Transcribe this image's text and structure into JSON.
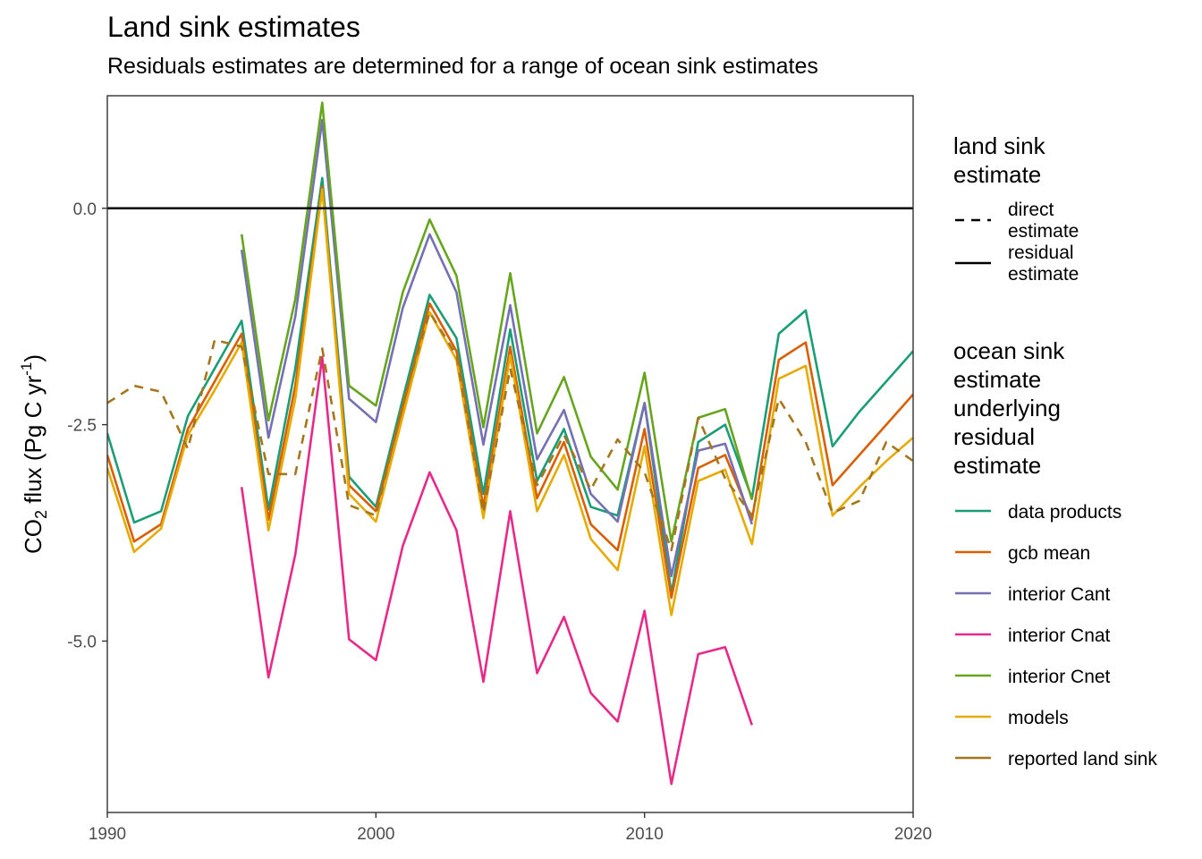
{
  "title": "Land sink estimates",
  "subtitle": "Residuals estimates are determined for a range of ocean sink estimates",
  "colors": {
    "data products": "#1b9e77",
    "gcb mean": "#d95f02",
    "interior Cant": "#7570b3",
    "interior Cnat": "#e7298a",
    "interior Cnet": "#66a61e",
    "models": "#e6ab02",
    "reported land sink": "#a6761d"
  },
  "chart_data": {
    "type": "line",
    "title": "Land sink estimates",
    "subtitle": "Residuals estimates are determined for a range of ocean sink estimates",
    "xlabel": "",
    "ylabel": "CO2 flux (Pg C yr-1)",
    "ylabel_parts": {
      "pre": "CO",
      "sub": "2",
      "mid": " flux (Pg C yr",
      "sup": "-1",
      "post": ")"
    },
    "xlim": [
      1990,
      2020
    ],
    "ylim": [
      -6.98,
      1.3
    ],
    "x_ticks": [
      1990,
      2000,
      2010,
      2020
    ],
    "x_tick_labels": [
      "1990",
      "2000",
      "2010",
      "2020"
    ],
    "y_ticks": [
      0,
      -2.5,
      -5
    ],
    "y_tick_labels": [
      "0.0",
      "-2.5",
      "-5.0"
    ],
    "reference_line_y": 0,
    "grid": false,
    "legend_position": "right",
    "linetype_legend": {
      "title_lines": [
        "land sink",
        "estimate"
      ],
      "entries": [
        {
          "label_lines": [
            "direct",
            "estimate"
          ],
          "dash": true
        },
        {
          "label_lines": [
            "residual",
            "estimate"
          ],
          "dash": false
        }
      ]
    },
    "color_legend": {
      "title_lines": [
        "ocean sink",
        "estimate",
        "underlying",
        "residual",
        "estimate"
      ],
      "entries": [
        "data products",
        "gcb mean",
        "interior Cant",
        "interior Cnat",
        "interior Cnet",
        "models",
        "reported land sink"
      ]
    },
    "series": [
      {
        "name": "data products",
        "linetype": "residual estimate",
        "x": [
          1990,
          1991,
          1992,
          1993,
          1994,
          1995,
          1996,
          1997,
          1998,
          1999,
          2000,
          2001,
          2002,
          2003,
          2004,
          2005,
          2006,
          2007,
          2008,
          2009,
          2010,
          2011,
          2012,
          2013,
          2014,
          2015,
          2016,
          2017,
          2018,
          2019,
          2020
        ],
        "y": [
          -2.6,
          -3.63,
          -3.5,
          -2.4,
          -1.85,
          -1.3,
          -3.48,
          -1.85,
          0.35,
          -3.1,
          -3.45,
          -2.2,
          -1.0,
          -1.5,
          -3.3,
          -1.4,
          -3.15,
          -2.55,
          -3.45,
          -3.55,
          -2.25,
          -4.45,
          -2.7,
          -2.5,
          -3.35,
          -1.45,
          -1.18,
          -2.75,
          -2.35,
          -2.0,
          -1.65
        ]
      },
      {
        "name": "gcb mean",
        "linetype": "residual estimate",
        "x": [
          1990,
          1991,
          1992,
          1993,
          1994,
          1995,
          1996,
          1997,
          1998,
          1999,
          2000,
          2001,
          2002,
          2003,
          2004,
          2005,
          2006,
          2007,
          2008,
          2009,
          2010,
          2011,
          2012,
          2013,
          2014,
          2015,
          2016,
          2017,
          2018,
          2019,
          2020
        ],
        "y": [
          -2.85,
          -3.85,
          -3.65,
          -2.55,
          -2.0,
          -1.45,
          -3.6,
          -2.05,
          0.25,
          -3.2,
          -3.5,
          -2.3,
          -1.1,
          -1.65,
          -3.45,
          -1.6,
          -3.35,
          -2.7,
          -3.65,
          -3.95,
          -2.55,
          -4.5,
          -3.0,
          -2.85,
          -3.6,
          -1.75,
          -1.55,
          -3.2,
          -2.85,
          -2.5,
          -2.15
        ]
      },
      {
        "name": "interior Cant",
        "linetype": "residual estimate",
        "x": [
          1995,
          1996,
          1997,
          1998,
          1999,
          2000,
          2001,
          2002,
          2003,
          2004,
          2005,
          2006,
          2007,
          2008,
          2009,
          2010,
          2011,
          2012,
          2013,
          2014
        ],
        "y": [
          -0.48,
          -2.65,
          -1.25,
          1.02,
          -2.2,
          -2.47,
          -1.15,
          -0.3,
          -0.97,
          -2.73,
          -1.12,
          -2.9,
          -2.33,
          -3.3,
          -3.62,
          -2.25,
          -4.25,
          -2.8,
          -2.72,
          -3.65
        ]
      },
      {
        "name": "interior Cnat",
        "linetype": "residual estimate",
        "x": [
          1995,
          1996,
          1997,
          1998,
          1999,
          2000,
          2001,
          2002,
          2003,
          2004,
          2005,
          2006,
          2007,
          2008,
          2009,
          2010,
          2011,
          2012,
          2013,
          2014
        ],
        "y": [
          -3.22,
          -5.42,
          -4.0,
          -1.72,
          -4.98,
          -5.22,
          -3.9,
          -3.05,
          -3.72,
          -5.47,
          -3.5,
          -5.37,
          -4.72,
          -5.6,
          -5.93,
          -4.65,
          -6.65,
          -5.15,
          -5.07,
          -5.97
        ]
      },
      {
        "name": "interior Cnet",
        "linetype": "residual estimate",
        "x": [
          1995,
          1996,
          1997,
          1998,
          1999,
          2000,
          2001,
          2002,
          2003,
          2004,
          2005,
          2006,
          2007,
          2008,
          2009,
          2010,
          2011,
          2012,
          2013,
          2014
        ],
        "y": [
          -0.3,
          -2.45,
          -1.05,
          1.22,
          -2.05,
          -2.28,
          -0.97,
          -0.13,
          -0.78,
          -2.53,
          -0.75,
          -2.6,
          -1.95,
          -2.87,
          -3.25,
          -1.9,
          -3.85,
          -2.42,
          -2.32,
          -3.37
        ]
      },
      {
        "name": "models",
        "linetype": "residual estimate",
        "x": [
          1990,
          1991,
          1992,
          1993,
          1994,
          1995,
          1996,
          1997,
          1998,
          1999,
          2000,
          2001,
          2002,
          2003,
          2004,
          2005,
          2006,
          2007,
          2008,
          2009,
          2010,
          2011,
          2012,
          2013,
          2014,
          2015,
          2016,
          2017,
          2018,
          2019,
          2020
        ],
        "y": [
          -3.0,
          -3.97,
          -3.7,
          -2.62,
          -2.1,
          -1.55,
          -3.72,
          -2.2,
          0.22,
          -3.3,
          -3.62,
          -2.4,
          -1.2,
          -1.75,
          -3.58,
          -1.7,
          -3.5,
          -2.85,
          -3.82,
          -4.18,
          -2.75,
          -4.7,
          -3.15,
          -3.02,
          -3.88,
          -1.97,
          -1.82,
          -3.55,
          -3.22,
          -2.92,
          -2.65
        ]
      },
      {
        "name": "reported land sink",
        "linetype": "direct estimate",
        "x": [
          1990,
          1991,
          1992,
          1993,
          1994,
          1995,
          1996,
          1997,
          1998,
          1999,
          2000,
          2001,
          2002,
          2003,
          2004,
          2005,
          2006,
          2007,
          2008,
          2009,
          2010,
          2011,
          2012,
          2013,
          2014,
          2015,
          2016,
          2017,
          2018,
          2019,
          2020
        ],
        "y": [
          -2.25,
          -2.05,
          -2.12,
          -2.78,
          -1.52,
          -1.6,
          -3.07,
          -3.07,
          -1.62,
          -3.43,
          -3.55,
          -2.25,
          -1.2,
          -1.7,
          -3.52,
          -1.85,
          -3.2,
          -2.62,
          -3.25,
          -2.67,
          -3.05,
          -3.95,
          -2.42,
          -3.12,
          -3.55,
          -2.2,
          -2.7,
          -3.52,
          -3.38,
          -2.7,
          -2.92
        ]
      }
    ]
  }
}
